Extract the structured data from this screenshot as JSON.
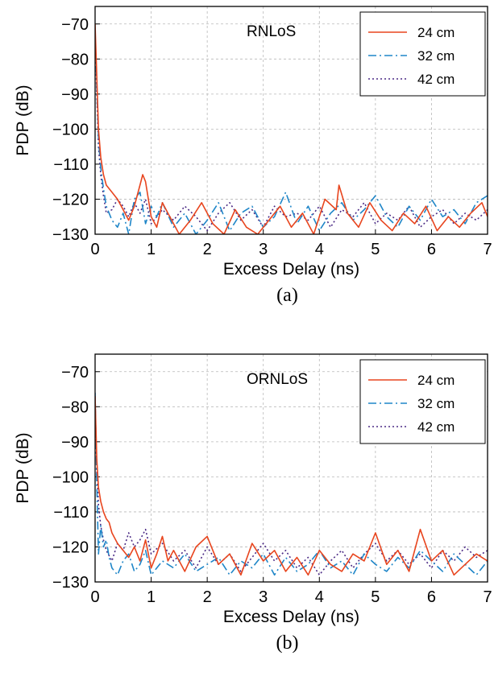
{
  "chart_data": [
    {
      "type": "line",
      "annotation": "RNLoS",
      "xlabel": "Excess Delay (ns)",
      "ylabel": "PDP (dB)",
      "caption": "(a)",
      "xlim": [
        0,
        7
      ],
      "ylim": [
        -130,
        -65
      ],
      "xticks": [
        "0",
        "1",
        "2",
        "3",
        "4",
        "5",
        "6",
        "7"
      ],
      "yticks": [
        "−70",
        "−80",
        "−90",
        "−100",
        "−110",
        "−120",
        "−130"
      ],
      "grid": true,
      "legend_position": "top-right",
      "series": [
        {
          "name": "24 cm",
          "color": "#e8451e",
          "dash": "solid",
          "x": [
            0.0,
            0.03,
            0.06,
            0.1,
            0.15,
            0.2,
            0.3,
            0.4,
            0.5,
            0.6,
            0.7,
            0.8,
            0.85,
            0.9,
            1.0,
            1.1,
            1.2,
            1.3,
            1.5,
            1.7,
            1.9,
            2.1,
            2.3,
            2.5,
            2.7,
            2.9,
            3.1,
            3.3,
            3.5,
            3.7,
            3.9,
            4.1,
            4.3,
            4.35,
            4.5,
            4.7,
            4.9,
            5.1,
            5.3,
            5.5,
            5.7,
            5.9,
            6.1,
            6.3,
            6.5,
            6.7,
            6.9,
            7.0
          ],
          "y": [
            -70,
            -85,
            -100,
            -108,
            -113,
            -116,
            -118,
            -120,
            -123,
            -126,
            -122,
            -116,
            -113,
            -115,
            -125,
            -128,
            -121,
            -124,
            -130,
            -126,
            -121,
            -127,
            -130,
            -123,
            -128,
            -130,
            -126,
            -122,
            -128,
            -124,
            -130,
            -120,
            -123,
            -116,
            -124,
            -128,
            -121,
            -126,
            -129,
            -124,
            -127,
            -122,
            -129,
            -125,
            -128,
            -124,
            -121,
            -125
          ]
        },
        {
          "name": "32 cm",
          "color": "#1f86c8",
          "dash": "10,4,2,4",
          "x": [
            0.0,
            0.03,
            0.06,
            0.1,
            0.15,
            0.2,
            0.3,
            0.4,
            0.5,
            0.6,
            0.7,
            0.8,
            0.9,
            1.0,
            1.1,
            1.2,
            1.4,
            1.6,
            1.8,
            2.0,
            2.2,
            2.4,
            2.6,
            2.8,
            3.0,
            3.2,
            3.4,
            3.6,
            3.8,
            4.0,
            4.2,
            4.4,
            4.6,
            4.8,
            5.0,
            5.2,
            5.4,
            5.6,
            5.8,
            6.0,
            6.2,
            6.4,
            6.6,
            6.8,
            7.0
          ],
          "y": [
            -73,
            -88,
            -103,
            -111,
            -117,
            -122,
            -126,
            -128,
            -124,
            -130,
            -120,
            -118,
            -127,
            -122,
            -125,
            -121,
            -128,
            -124,
            -130,
            -126,
            -121,
            -129,
            -124,
            -122,
            -128,
            -125,
            -118,
            -127,
            -122,
            -129,
            -124,
            -121,
            -126,
            -123,
            -119,
            -125,
            -128,
            -122,
            -126,
            -120,
            -125,
            -123,
            -127,
            -121,
            -119
          ]
        },
        {
          "name": "42 cm",
          "color": "#4b2a85",
          "dash": "2,3",
          "x": [
            0.0,
            0.03,
            0.06,
            0.1,
            0.15,
            0.2,
            0.3,
            0.4,
            0.5,
            0.6,
            0.7,
            0.8,
            0.9,
            1.0,
            1.2,
            1.4,
            1.6,
            1.8,
            2.0,
            2.2,
            2.4,
            2.6,
            2.8,
            3.0,
            3.2,
            3.4,
            3.6,
            3.8,
            4.0,
            4.2,
            4.4,
            4.6,
            4.8,
            5.0,
            5.2,
            5.4,
            5.6,
            5.8,
            6.0,
            6.2,
            6.4,
            6.6,
            6.8,
            7.0
          ],
          "y": [
            -74,
            -90,
            -105,
            -113,
            -119,
            -124,
            -123,
            -120,
            -122,
            -125,
            -121,
            -124,
            -120,
            -127,
            -123,
            -126,
            -122,
            -125,
            -129,
            -124,
            -121,
            -126,
            -123,
            -128,
            -122,
            -125,
            -124,
            -126,
            -122,
            -128,
            -123,
            -125,
            -121,
            -127,
            -124,
            -126,
            -122,
            -128,
            -125,
            -123,
            -127,
            -124,
            -126,
            -123
          ]
        }
      ]
    },
    {
      "type": "line",
      "annotation": "ORNLoS",
      "xlabel": "Excess Delay (ns)",
      "ylabel": "PDP (dB)",
      "caption": "(b)",
      "xlim": [
        0,
        7
      ],
      "ylim": [
        -130,
        -65
      ],
      "xticks": [
        "0",
        "1",
        "2",
        "3",
        "4",
        "5",
        "6",
        "7"
      ],
      "yticks": [
        "−70",
        "−80",
        "−90",
        "−100",
        "−110",
        "−120",
        "−130"
      ],
      "grid": true,
      "legend_position": "top-right",
      "series": [
        {
          "name": "24 cm",
          "color": "#e8451e",
          "dash": "solid",
          "x": [
            0.0,
            0.03,
            0.06,
            0.1,
            0.15,
            0.2,
            0.25,
            0.3,
            0.4,
            0.5,
            0.6,
            0.7,
            0.8,
            0.9,
            1.0,
            1.1,
            1.2,
            1.3,
            1.4,
            1.6,
            1.8,
            2.0,
            2.2,
            2.4,
            2.6,
            2.8,
            3.0,
            3.2,
            3.4,
            3.6,
            3.8,
            4.0,
            4.2,
            4.4,
            4.6,
            4.8,
            5.0,
            5.2,
            5.4,
            5.6,
            5.8,
            6.0,
            6.2,
            6.4,
            6.6,
            6.8,
            7.0
          ],
          "y": [
            -77,
            -95,
            -103,
            -107,
            -110,
            -112,
            -113,
            -116,
            -119,
            -121,
            -123,
            -120,
            -124,
            -118,
            -126,
            -122,
            -117,
            -124,
            -121,
            -127,
            -120,
            -117,
            -125,
            -122,
            -128,
            -119,
            -124,
            -121,
            -127,
            -123,
            -128,
            -121,
            -125,
            -127,
            -122,
            -124,
            -116,
            -125,
            -121,
            -127,
            -115,
            -124,
            -121,
            -128,
            -125,
            -122,
            -124
          ]
        },
        {
          "name": "32 cm",
          "color": "#1f86c8",
          "dash": "10,4,2,4",
          "x": [
            0.0,
            0.03,
            0.06,
            0.1,
            0.15,
            0.2,
            0.25,
            0.3,
            0.4,
            0.5,
            0.6,
            0.7,
            0.8,
            0.9,
            1.0,
            1.2,
            1.4,
            1.6,
            1.8,
            2.0,
            2.2,
            2.4,
            2.6,
            2.8,
            3.0,
            3.2,
            3.4,
            3.6,
            3.8,
            4.0,
            4.2,
            4.4,
            4.6,
            4.8,
            5.0,
            5.2,
            5.4,
            5.6,
            5.8,
            6.0,
            6.2,
            6.4,
            6.6,
            6.8,
            7.0
          ],
          "y": [
            -76,
            -102,
            -122,
            -114,
            -120,
            -118,
            -123,
            -126,
            -128,
            -124,
            -122,
            -127,
            -125,
            -121,
            -128,
            -124,
            -126,
            -122,
            -127,
            -125,
            -123,
            -128,
            -124,
            -126,
            -122,
            -128,
            -123,
            -127,
            -125,
            -121,
            -126,
            -124,
            -128,
            -122,
            -125,
            -127,
            -123,
            -126,
            -121,
            -124,
            -127,
            -122,
            -125,
            -128,
            -124
          ]
        },
        {
          "name": "42 cm",
          "color": "#4b2a85",
          "dash": "2,3",
          "x": [
            0.0,
            0.03,
            0.06,
            0.1,
            0.15,
            0.2,
            0.3,
            0.4,
            0.5,
            0.6,
            0.7,
            0.8,
            0.9,
            1.0,
            1.2,
            1.4,
            1.6,
            1.8,
            2.0,
            2.2,
            2.4,
            2.6,
            2.8,
            3.0,
            3.2,
            3.4,
            3.6,
            3.8,
            4.0,
            4.2,
            4.4,
            4.6,
            4.8,
            5.0,
            5.2,
            5.4,
            5.6,
            5.8,
            6.0,
            6.2,
            6.4,
            6.6,
            6.8,
            7.0
          ],
          "y": [
            -79,
            -98,
            -108,
            -114,
            -118,
            -121,
            -124,
            -119,
            -121,
            -116,
            -120,
            -118,
            -115,
            -122,
            -119,
            -124,
            -121,
            -126,
            -120,
            -125,
            -122,
            -127,
            -123,
            -119,
            -124,
            -121,
            -126,
            -123,
            -128,
            -124,
            -121,
            -126,
            -122,
            -119,
            -124,
            -121,
            -125,
            -122,
            -126,
            -121,
            -124,
            -120,
            -123,
            -121
          ]
        }
      ]
    }
  ]
}
